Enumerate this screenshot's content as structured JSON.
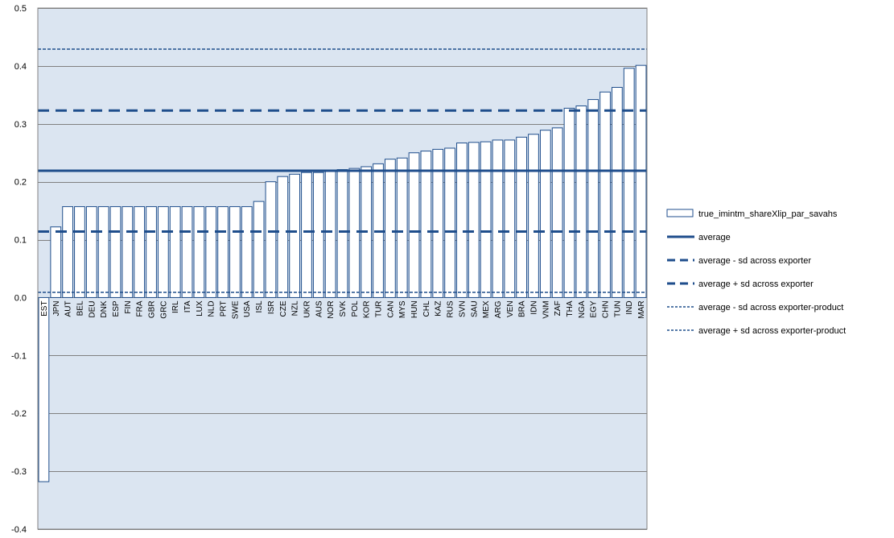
{
  "chart_data": {
    "type": "bar",
    "title": "",
    "xlabel": "",
    "ylabel": "",
    "ylim": [
      -0.4,
      0.5
    ],
    "yticks": [
      "-0.4",
      "-0.3",
      "-0.2",
      "-0.1",
      "0.0",
      "0.1",
      "0.2",
      "0.3",
      "0.4",
      "0.5"
    ],
    "ytick_values": [
      -0.4,
      -0.3,
      -0.2,
      -0.1,
      0.0,
      0.1,
      0.2,
      0.3,
      0.4,
      0.5
    ],
    "grid": true,
    "legend_position": "right",
    "categories": [
      "EST",
      "JPN",
      "AUT",
      "BEL",
      "DEU",
      "DNK",
      "ESP",
      "FIN",
      "FRA",
      "GBR",
      "GRC",
      "IRL",
      "ITA",
      "LUX",
      "NLD",
      "PRT",
      "SWE",
      "USA",
      "ISL",
      "ISR",
      "CZE",
      "NZL",
      "UKR",
      "AUS",
      "NOR",
      "SVK",
      "POL",
      "KOR",
      "TUR",
      "CAN",
      "MYS",
      "HUN",
      "CHL",
      "KAZ",
      "RUS",
      "SVN",
      "SAU",
      "MEX",
      "ARG",
      "VEN",
      "BRA",
      "IDN",
      "VNM",
      "ZAF",
      "THA",
      "NGA",
      "EGY",
      "CHN",
      "TUN",
      "IND",
      "MAR"
    ],
    "series": [
      {
        "name": "true_imintm_shareXlip_par_savahs",
        "values": [
          -0.318,
          0.122,
          0.157,
          0.157,
          0.157,
          0.157,
          0.157,
          0.157,
          0.157,
          0.157,
          0.157,
          0.157,
          0.157,
          0.157,
          0.157,
          0.157,
          0.157,
          0.157,
          0.166,
          0.2,
          0.209,
          0.213,
          0.216,
          0.216,
          0.219,
          0.221,
          0.223,
          0.226,
          0.231,
          0.239,
          0.241,
          0.25,
          0.253,
          0.256,
          0.258,
          0.267,
          0.268,
          0.269,
          0.272,
          0.272,
          0.277,
          0.282,
          0.289,
          0.293,
          0.327,
          0.331,
          0.342,
          0.355,
          0.363,
          0.396,
          0.401
        ]
      }
    ],
    "reference_lines": [
      {
        "name": "average",
        "value": 0.219,
        "style": "solid",
        "width": 3
      },
      {
        "name": "average - sd across exporter",
        "value": 0.114,
        "style": "dashed",
        "width": 3
      },
      {
        "name": "average + sd across exporter",
        "value": 0.323,
        "style": "dashed",
        "width": 3
      },
      {
        "name": "average - sd across exporter-product",
        "value": 0.009,
        "style": "dotted",
        "width": 1.5
      },
      {
        "name": "average + sd across exporter-product",
        "value": 0.429,
        "style": "dotted",
        "width": 1.5
      }
    ],
    "colors": {
      "plot_background": "#dbe5f1",
      "bar_fill": "#ffffff",
      "bar_stroke": "#1f4e8c",
      "line": "#1f4e8c",
      "grid": "#808080"
    }
  }
}
